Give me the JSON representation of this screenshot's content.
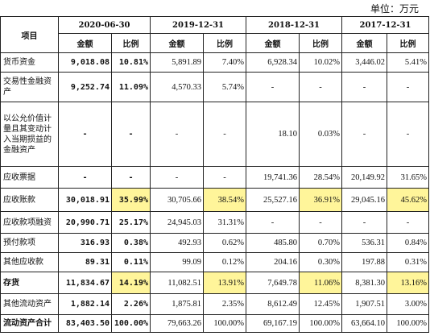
{
  "unit_label": "单位：万元",
  "header": {
    "item": "项目",
    "periods": [
      "2020-06-30",
      "2019-12-31",
      "2018-12-31",
      "2017-12-31"
    ],
    "sub": [
      "金额",
      "比例"
    ]
  },
  "rows": [
    {
      "label": "货币资金",
      "v": [
        "9,018.08",
        "10.81%",
        "5,891.89",
        "7.40%",
        "6,928.34",
        "10.02%",
        "3,446.02",
        "5.41%"
      ]
    },
    {
      "label": "交易性金融资产",
      "v": [
        "9,252.74",
        "11.09%",
        "4,570.33",
        "5.74%",
        "-",
        "-",
        "-",
        "-"
      ]
    },
    {
      "label": "以公允价值计量且其变动计入当期损益的金融资产",
      "v": [
        "-",
        "-",
        "-",
        "-",
        "18.10",
        "0.03%",
        "-",
        "-"
      ]
    },
    {
      "label": "应收票据",
      "v": [
        "-",
        "-",
        "-",
        "-",
        "19,741.36",
        "28.54%",
        "20,149.92",
        "31.65%"
      ]
    },
    {
      "label": "应收账款",
      "v": [
        "30,018.91",
        "35.99%",
        "30,705.66",
        "38.54%",
        "25,527.16",
        "36.91%",
        "29,045.16",
        "45.62%"
      ]
    },
    {
      "label": "应收款项融资",
      "v": [
        "20,990.71",
        "25.17%",
        "24,945.03",
        "31.31%",
        "-",
        "-",
        "-",
        "-"
      ]
    },
    {
      "label": "预付款项",
      "v": [
        "316.93",
        "0.38%",
        "492.93",
        "0.62%",
        "485.80",
        "0.70%",
        "536.31",
        "0.84%"
      ]
    },
    {
      "label": "其他应收款",
      "v": [
        "89.31",
        "0.11%",
        "99.09",
        "0.12%",
        "204.16",
        "0.30%",
        "197.88",
        "0.31%"
      ]
    },
    {
      "label": "存货",
      "v": [
        "11,834.67",
        "14.19%",
        "11,082.51",
        "13.91%",
        "7,649.78",
        "11.06%",
        "8,381.30",
        "13.16%"
      ]
    },
    {
      "label": "其他流动资产",
      "v": [
        "1,882.14",
        "2.26%",
        "1,875.81",
        "2.35%",
        "8,612.49",
        "12.45%",
        "1,907.51",
        "3.00%"
      ]
    },
    {
      "label": "流动资产合计",
      "v": [
        "83,403.50",
        "100.00%",
        "79,663.26",
        "100.00%",
        "69,167.19",
        "100.00%",
        "63,664.10",
        "100.00%"
      ]
    }
  ],
  "highlight_color": "#fff59a"
}
